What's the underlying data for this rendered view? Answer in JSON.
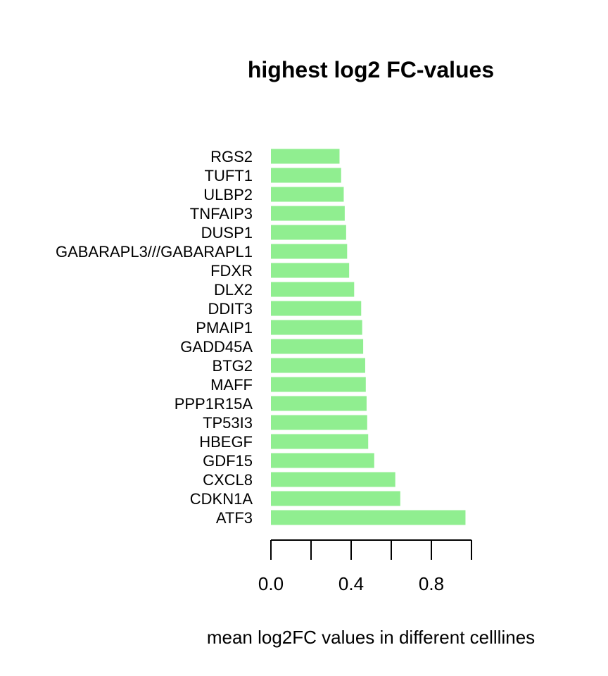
{
  "chart_data": {
    "type": "bar",
    "orientation": "horizontal",
    "title": "highest log2 FC-values",
    "xlabel": "mean log2FC values in different celllines",
    "ylabel": "",
    "categories": [
      "ATF3",
      "CDKN1A",
      "CXCL8",
      "GDF15",
      "HBEGF",
      "TP53I3",
      "PPP1R15A",
      "MAFF",
      "BTG2",
      "GADD45A",
      "PMAIP1",
      "DDIT3",
      "DLX2",
      "FDXR",
      "GABARAPL3///GABARAPL1",
      "DUSP1",
      "TNFAIP3",
      "ULBP2",
      "TUFT1",
      "RGS2"
    ],
    "values": [
      0.97,
      0.645,
      0.62,
      0.515,
      0.485,
      0.48,
      0.477,
      0.473,
      0.47,
      0.46,
      0.455,
      0.45,
      0.415,
      0.39,
      0.38,
      0.375,
      0.368,
      0.363,
      0.35,
      0.342
    ],
    "xticks": [
      0.0,
      0.2,
      0.4,
      0.6,
      0.8,
      1.0
    ],
    "xtick_labels": [
      "0.0",
      "",
      "0.4",
      "",
      "0.8",
      ""
    ],
    "xlim": [
      0,
      1.0
    ],
    "bar_color": "#90ee90",
    "grid": false,
    "legend": "none"
  }
}
